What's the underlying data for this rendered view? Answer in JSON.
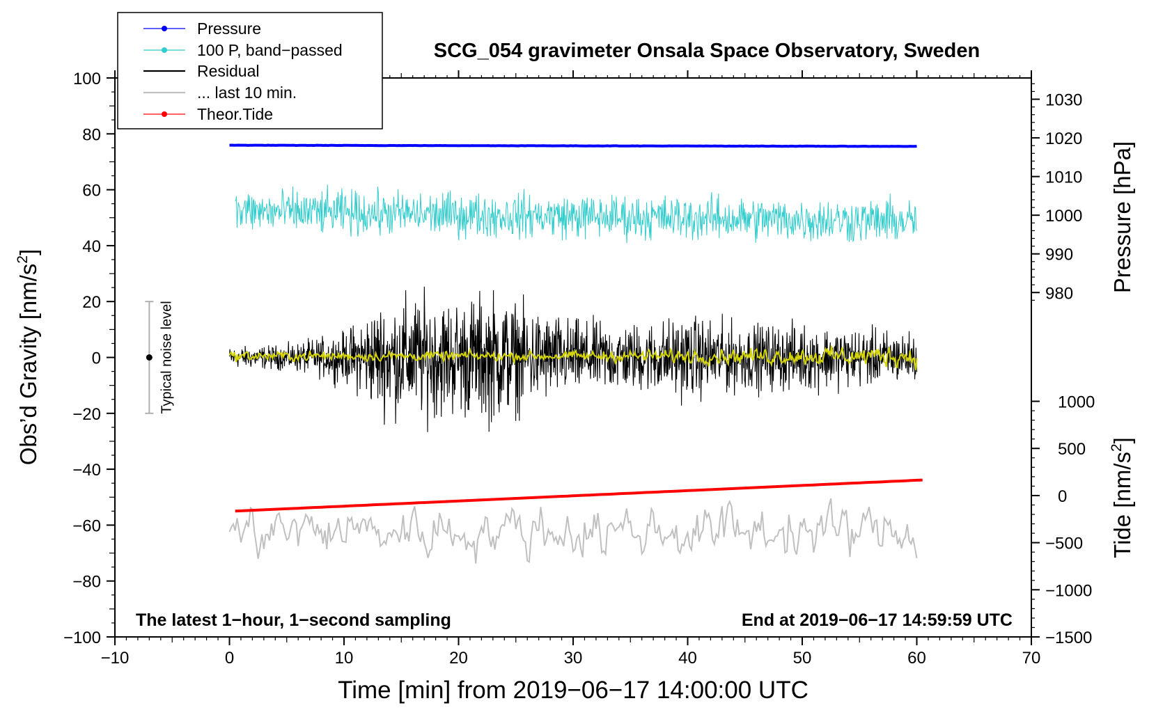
{
  "chart_data": {
    "type": "line",
    "title": "SCG_054 gravimeter Onsala Space Observatory, Sweden",
    "xlabel": "Time [min] from 2019−06−17 14:00:00 UTC",
    "ylabel_left": "Obs’d Gravity [nm/s",
    "ylabel_left_sup": "2",
    "ylabel_left_end": "]",
    "ylabel_right_pressure": "Pressure [hPa]",
    "ylabel_right_tide": "Tide [nm/s",
    "ylabel_right_tide_sup": "2",
    "ylabel_right_tide_end": "]",
    "xlim": [
      -10,
      70
    ],
    "ylim": [
      -100,
      100
    ],
    "x_ticks": [
      "−10",
      "0",
      "10",
      "20",
      "30",
      "40",
      "50",
      "60",
      "70"
    ],
    "x_tick_values": [
      -10,
      0,
      10,
      20,
      30,
      40,
      50,
      60,
      70
    ],
    "y_ticks": [
      "100",
      "80",
      "60",
      "40",
      "20",
      "0",
      "−20",
      "−40",
      "−60",
      "−80",
      "−100"
    ],
    "y_tick_values": [
      100,
      80,
      60,
      40,
      20,
      0,
      -20,
      -40,
      -60,
      -80,
      -100
    ],
    "pressure_axis": {
      "ticks": [
        "1030",
        "1020",
        "1010",
        "1000",
        "990",
        "980"
      ],
      "values": [
        1030,
        1020,
        1010,
        1000,
        990,
        980
      ],
      "range": [
        975.5,
        1035.5
      ],
      "gravity_span": [
        17,
        100
      ]
    },
    "tide_axis": {
      "ticks": [
        "1000",
        "500",
        "0",
        "−500",
        "−1000",
        "−1500"
      ],
      "values": [
        1000,
        500,
        0,
        -500,
        -1000,
        -1500
      ],
      "range": [
        -1500,
        1080
      ],
      "gravity_span": [
        -100,
        -13
      ]
    },
    "legend": {
      "placement": "top-left",
      "entries": [
        {
          "label": "Pressure",
          "color": "#0000ff",
          "marker": "dot"
        },
        {
          "label": "100 P, band−passed",
          "color": "#33cccc",
          "marker": "dot"
        },
        {
          "label": "Residual",
          "color": "#000000",
          "marker": "none"
        },
        {
          "label": "... last 10 min.",
          "color": "#c0c0c0",
          "marker": "none"
        },
        {
          "label": "Theor.Tide",
          "color": "#ff0000",
          "marker": "dot"
        }
      ]
    },
    "series": [
      {
        "name": "Pressure",
        "axis": "pressure",
        "x_range": [
          0,
          60
        ],
        "start": 1018.1,
        "end": 1017.8,
        "color": "#0000ff"
      },
      {
        "name": "100 P, band−passed",
        "axis": "gravity",
        "x_range": [
          0.5,
          60
        ],
        "center": 50.5,
        "amplitude": 5.5,
        "color": "#33cccc"
      },
      {
        "name": "Residual",
        "axis": "gravity",
        "x_range": [
          0,
          60
        ],
        "center": 0,
        "envelope_minutes": [
          0,
          5,
          10,
          13,
          16,
          20,
          23,
          26,
          30,
          35,
          40,
          45,
          50,
          55,
          60
        ],
        "envelope_amplitude": [
          2.5,
          3,
          6,
          13,
          15,
          14,
          16,
          12,
          9,
          8,
          10,
          8,
          8,
          7,
          6
        ],
        "color": "#000000"
      },
      {
        "name": "Residual smoothed",
        "axis": "gravity",
        "x_range": [
          0,
          60
        ],
        "center": 0.5,
        "amplitude": 1.8,
        "color": "#d4d400"
      },
      {
        "name": "... last 10 min.",
        "axis": "gravity",
        "x_range": [
          0,
          60
        ],
        "center": -62,
        "amplitude": 7.5,
        "color": "#c0c0c0"
      },
      {
        "name": "Theor.Tide",
        "axis": "tide",
        "x_range": [
          0.5,
          60.5
        ],
        "start": -165,
        "end": 165,
        "color": "#ff0000"
      }
    ],
    "noise_bar": {
      "x": -7,
      "low": -20,
      "high": 20,
      "center": 0,
      "label": "Typical noise level"
    },
    "annotation_left": "The latest 1−hour, 1−second sampling",
    "annotation_right": "End at 2019−06−17 14:59:59 UTC"
  }
}
